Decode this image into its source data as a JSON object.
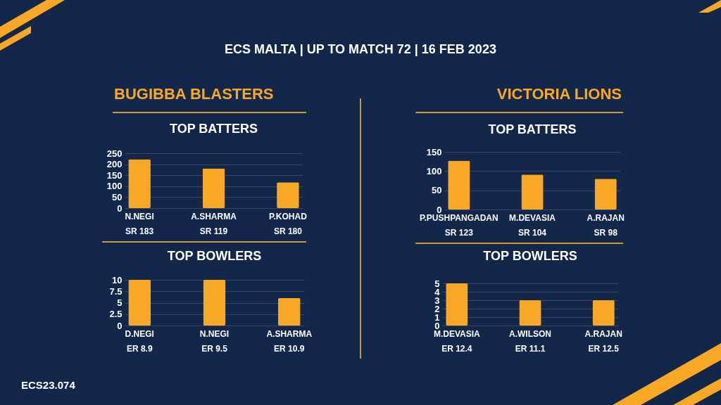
{
  "chart_data": [
    {
      "type": "other",
      "title": "ECS MALTA | UP TO MATCH 72 | 16 FEB 2023",
      "annotations": [
        "BUGIBBA BLASTERS",
        "VICTORIA LIONS",
        "ECS23.074"
      ]
    },
    {
      "type": "bar",
      "title": "TOP BATTERS",
      "categories": [
        "N.NEGI",
        "A.SHARMA",
        "P.KOHAD"
      ],
      "values": [
        223,
        181,
        118
      ],
      "color": "#f9a825",
      "ylim": [
        0,
        250
      ],
      "yticks": [
        0,
        50,
        100,
        150,
        200,
        250
      ],
      "grid": "y",
      "annotations": [
        "SR 183",
        "SR 119",
        "SR 180"
      ]
    },
    {
      "type": "bar",
      "title": "TOP BATTERS",
      "categories": [
        "P.PUSHPANGADAN",
        "M.DEVASIA",
        "A.RAJAN"
      ],
      "values": [
        127,
        91,
        80
      ],
      "color": "#f9a825",
      "ylim": [
        0,
        150
      ],
      "yticks": [
        0,
        50,
        100,
        150
      ],
      "grid": "y",
      "annotations": [
        "SR 123",
        "SR 104",
        "SR 98"
      ]
    },
    {
      "type": "bar",
      "title": "TOP BOWLERS",
      "categories": [
        "D.NEGI",
        "N.NEGI",
        "A.SHARMA"
      ],
      "values": [
        10,
        10,
        6
      ],
      "color": "#f9a825",
      "ylim": [
        0,
        10
      ],
      "yticks": [
        0,
        2.5,
        5,
        7.5,
        10
      ],
      "grid": "y",
      "annotations": [
        "ER 8.9",
        "ER 9.5",
        "ER 10.9"
      ]
    },
    {
      "type": "bar",
      "title": "TOP BOWLERS",
      "categories": [
        "M.DEVASIA",
        "A.WILSON",
        "A.RAJAN"
      ],
      "values": [
        5,
        3,
        3
      ],
      "color": "#f9a825",
      "ylim": [
        0,
        5
      ],
      "yticks": [
        0,
        1,
        2,
        3,
        4,
        5
      ],
      "grid": "y",
      "annotations": [
        "ER 12.4",
        "ER 11.1",
        "ER 12.5"
      ]
    }
  ]
}
